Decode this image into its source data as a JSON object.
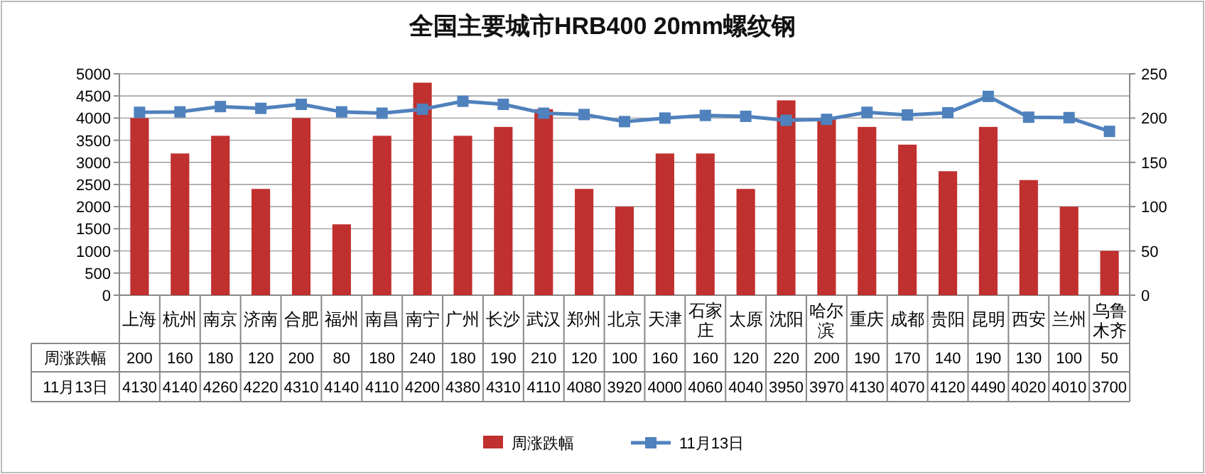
{
  "chart_data": {
    "type": "bar",
    "title": "全国主要城市HRB400 20mm螺纹钢",
    "categories": [
      "上海",
      "杭州",
      "南京",
      "济南",
      "合肥",
      "福州",
      "南昌",
      "南宁",
      "广州",
      "长沙",
      "武汉",
      "郑州",
      "北京",
      "天津",
      "石家庄",
      "太原",
      "沈阳",
      "哈尔滨",
      "重庆",
      "成都",
      "贵阳",
      "昆明",
      "西安",
      "兰州",
      "乌鲁木齐"
    ],
    "series": [
      {
        "name": "周涨跌幅",
        "axis": "y2",
        "color": "#c0302f",
        "values": [
          200,
          160,
          180,
          120,
          200,
          80,
          180,
          240,
          180,
          190,
          210,
          120,
          100,
          160,
          160,
          120,
          220,
          200,
          190,
          170,
          140,
          190,
          130,
          100,
          50
        ]
      },
      {
        "name": "11月13日",
        "type": "line",
        "axis": "y",
        "color": "#4f81bd",
        "marker": "square",
        "values": [
          4130,
          4140,
          4260,
          4220,
          4310,
          4140,
          4110,
          4200,
          4380,
          4310,
          4110,
          4080,
          3920,
          4000,
          4060,
          4040,
          3950,
          3970,
          4130,
          4070,
          4120,
          4490,
          4020,
          4010,
          3700
        ]
      }
    ],
    "ylim": [
      0,
      5000
    ],
    "yticks": [
      0,
      500,
      1000,
      1500,
      2000,
      2500,
      3000,
      3500,
      4000,
      4500,
      5000
    ],
    "y2lim": [
      0,
      250
    ],
    "y2ticks": [
      0,
      50,
      100,
      150,
      200,
      250
    ],
    "grid": "y",
    "legend": "bottom",
    "data_labels": true
  }
}
